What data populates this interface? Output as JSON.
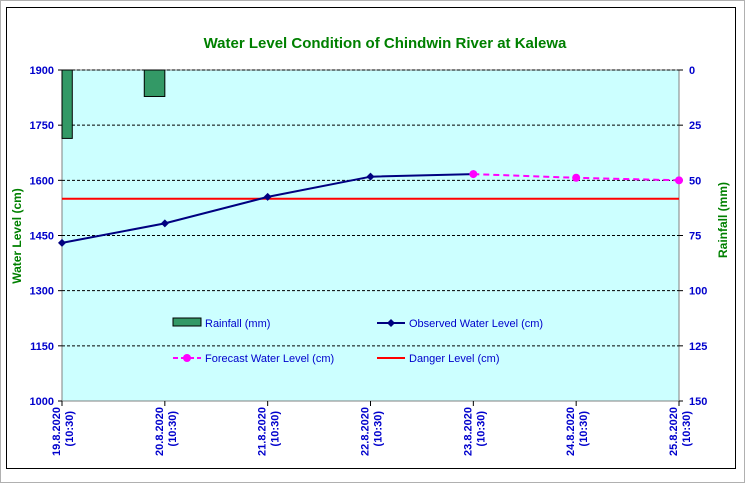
{
  "chart_data": {
    "type": "line",
    "title": "Water Level Condition of Chindwin River at  Kalewa",
    "ylabel_left": "Water Level (cm)",
    "ylabel_right": "Rainfall (mm)",
    "xlabel": "",
    "categories": [
      [
        "19.8.2020",
        "(10:30)"
      ],
      [
        "20.8.2020",
        "(10:30)"
      ],
      [
        "21.8.2020",
        "(10:30)"
      ],
      [
        "22.8.2020",
        "(10:30)"
      ],
      [
        "23.8.2020",
        "(10:30)"
      ],
      [
        "24.8.2020",
        "(10:30)"
      ],
      [
        "25.8.2020",
        "(10:30)"
      ]
    ],
    "left_axis": {
      "min": 1000,
      "max": 1900,
      "ticks": [
        1000,
        1150,
        1300,
        1450,
        1600,
        1750,
        1900
      ]
    },
    "right_axis": {
      "min": 0,
      "max": 150,
      "reversed": true,
      "ticks": [
        0,
        25,
        50,
        75,
        100,
        125,
        150
      ]
    },
    "series": [
      {
        "name": "Rainfall (mm)",
        "type": "bar",
        "axis": "right",
        "color": "#339966",
        "values": [
          31,
          12,
          null,
          null,
          null,
          null,
          null
        ]
      },
      {
        "name": "Observed Water Level (cm)",
        "type": "line",
        "axis": "left",
        "color": "#000080",
        "marker": "diamond",
        "values": [
          1430,
          1483,
          1555,
          1610,
          1617,
          null,
          null
        ]
      },
      {
        "name": "Forecast Water Level (cm)",
        "type": "line",
        "axis": "left",
        "color": "#ff00ff",
        "dashed": true,
        "marker": "circle",
        "values": [
          null,
          null,
          null,
          null,
          1617,
          1607,
          1600
        ]
      },
      {
        "name": "Danger Level (cm)",
        "type": "line",
        "axis": "left",
        "color": "#ff0000",
        "constant": 1550
      }
    ],
    "legend": {
      "placement": "inside-bottom",
      "entries": [
        "Rainfall (mm)",
        "Observed Water Level (cm)",
        "Forecast Water Level (cm)",
        "Danger Level (cm)"
      ]
    },
    "grid": true,
    "colors": {
      "plot_background": "#ccffff",
      "title": "#008000",
      "axis_text": "#0000cc",
      "axis_title": "#008000",
      "legend_text": "#0000cc"
    }
  }
}
